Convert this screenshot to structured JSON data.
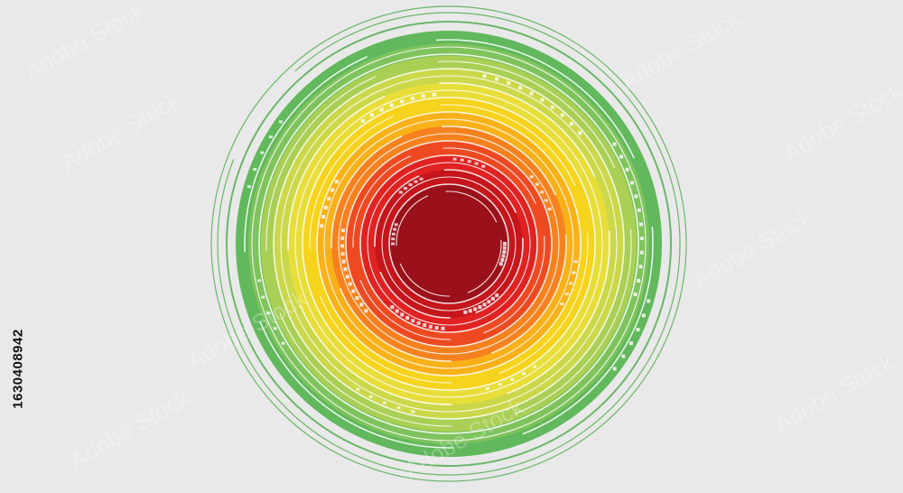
{
  "stock_id": "1630408942",
  "watermark_text": "Adobe Stock",
  "colors": {
    "background": "#e9e9e9",
    "center": "#9b111b",
    "ring_palette": [
      "#9b111b",
      "#c4161c",
      "#e02222",
      "#ee4a22",
      "#f6821f",
      "#f9b11a",
      "#f6d31c",
      "#e8de3a",
      "#cbd84a",
      "#a9cf55",
      "#7fc35d",
      "#62b85c"
    ]
  }
}
